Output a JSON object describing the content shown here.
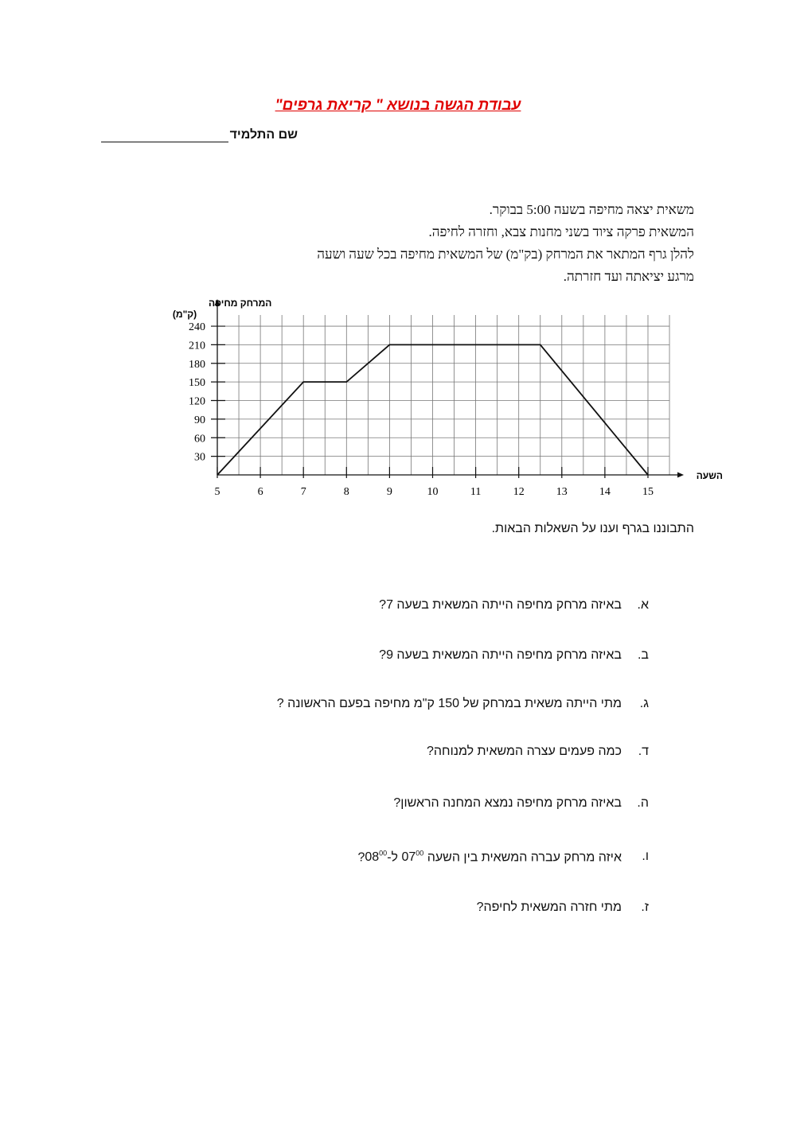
{
  "header": {
    "title": "עבודת  הגשה בנושא \" קריאת גרפים\"",
    "student_name_label": "שם התלמיד"
  },
  "intro": [
    "משאית יצאה מחיפה בשעה  5:00  בבוקר.",
    "המשאית פרקה ציוד בשני מחנות צבא,  וחזרה לחיפה.",
    "להלן גרף המתאר את המרחק  (בק\"מ)  של המשאית מחיפה בכל שעה ושעה",
    "מרגע יציאתה ועד חזרתה."
  ],
  "chart_data": {
    "type": "line",
    "xlabel": "השעה",
    "ylabel": "המרחק מחיפה",
    "ylabel_unit": "(ק\"מ)",
    "x_ticks": [
      "5",
      "6",
      "7",
      "8",
      "9",
      "10",
      "11",
      "12",
      "13",
      "14",
      "15"
    ],
    "y_ticks": [
      "30",
      "60",
      "90",
      "120",
      "150",
      "180",
      "210",
      "240"
    ],
    "xlim": [
      5,
      15.5
    ],
    "ylim": [
      0,
      240
    ],
    "grid": true,
    "grid_x_step": 0.5,
    "grid_y_step": 30,
    "series": [
      {
        "points": [
          [
            5,
            0
          ],
          [
            7,
            150
          ],
          [
            8,
            150
          ],
          [
            9,
            210
          ],
          [
            12.5,
            210
          ],
          [
            15,
            0
          ]
        ]
      }
    ],
    "line_color": "#111111"
  },
  "instruction": "התבוננו בגרף וענו על השאלות הבאות.",
  "questions": [
    {
      "letter": "א.",
      "text": "באיזה מרחק מחיפה הייתה המשאית  בשעה  7?"
    },
    {
      "letter": "ב.",
      "text": "באיזה מרחק  מחיפה הייתה המשאית  בשעה   9?"
    },
    {
      "letter": "ג.",
      "text": "מתי  הייתה משאית  במרחק של  150  ק\"מ מחיפה בפעם הראשונה ?"
    },
    {
      "letter": "ד.",
      "text": "כמה פעמים עצרה המשאית למנוחה?"
    },
    {
      "letter": "ה.",
      "text": "באיזה מרחק מחיפה נמצא המחנה הראשון?"
    },
    {
      "letter": "ו.",
      "text_a": "איזה מרחק עברה המשאית  בין השעה  ",
      "t1": "07",
      "t1_sup": "00",
      "text_b": "  ל-",
      "t2": "08",
      "t2_sup": "00",
      "text_c": "?"
    },
    {
      "letter": "ז.",
      "text": "מתי חזרה המשאית לחיפה?"
    }
  ]
}
